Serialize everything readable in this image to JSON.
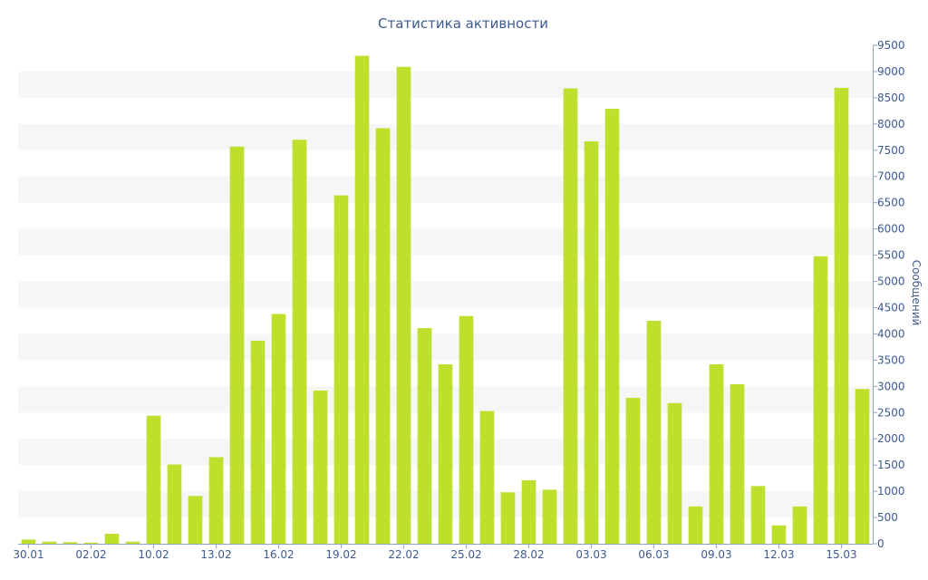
{
  "chart_data": {
    "type": "bar",
    "title": "Статистика активности",
    "ylabel": "Сообщений",
    "xlabel": "",
    "ylim": [
      0,
      9500
    ],
    "y_ticks": [
      0,
      500,
      1000,
      1500,
      2000,
      2500,
      3000,
      3500,
      4000,
      4500,
      5000,
      5500,
      6000,
      6500,
      7000,
      7500,
      8000,
      8500,
      9000,
      9500
    ],
    "y_axis_position": "right",
    "grid": "horizontal alternating bands",
    "categories": [
      "30.01",
      "31.01",
      "01.02",
      "02.02",
      "03.02",
      "04.02",
      "10.02",
      "11.02",
      "12.02",
      "13.02",
      "14.02",
      "15.02",
      "16.02",
      "17.02",
      "18.02",
      "19.02",
      "20.02",
      "21.02",
      "22.02",
      "23.02",
      "24.02",
      "25.02",
      "26.02",
      "27.02",
      "28.02",
      "01.03",
      "02.03",
      "03.03",
      "04.03",
      "05.03",
      "06.03",
      "07.03",
      "08.03",
      "09.03",
      "10.03",
      "11.03",
      "12.03",
      "13.03",
      "14.03",
      "15.03",
      "16.03"
    ],
    "x_tick_labels": [
      "30.01",
      "02.02",
      "10.02",
      "13.02",
      "16.02",
      "19.02",
      "22.02",
      "25.02",
      "28.02",
      "03.03",
      "06.03",
      "09.03",
      "12.03",
      "15.03"
    ],
    "x_tick_indices": [
      0,
      3,
      6,
      9,
      12,
      15,
      18,
      21,
      24,
      27,
      30,
      33,
      36,
      39
    ],
    "values": [
      80,
      40,
      30,
      20,
      190,
      40,
      2440,
      1510,
      910,
      1650,
      7570,
      3870,
      4380,
      7700,
      2920,
      6640,
      9300,
      7920,
      9090,
      4110,
      3420,
      4340,
      2530,
      980,
      1210,
      1030,
      8680,
      7670,
      8290,
      2780,
      4250,
      2680,
      710,
      3420,
      3040,
      1100,
      350,
      710,
      5480,
      8690,
      2950
    ],
    "colors": {
      "bar": "#bde02c",
      "text": "#3e5a8f",
      "band": "#f6f6f6",
      "axis": "#8ea4c8"
    }
  }
}
